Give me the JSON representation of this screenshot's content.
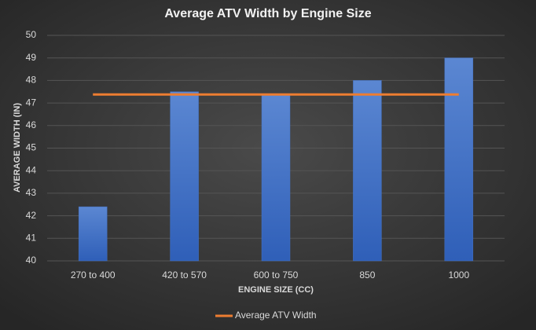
{
  "chart_data": {
    "type": "bar",
    "title": "Average ATV Width by Engine Size",
    "x_label": "ENGINE SIZE (CC)",
    "y_label": "AVERAGE WIDTH (IN)",
    "categories": [
      "270 to 400",
      "420 to 570",
      "600 to 750",
      "850",
      "1000"
    ],
    "series": [
      {
        "type": "bar",
        "color": "#4472c4",
        "values": [
          42.4,
          47.5,
          47.35,
          48.0,
          49.0
        ]
      },
      {
        "type": "line",
        "name": "Average ATV Width",
        "color": "#ed7d31",
        "values": [
          47.38,
          47.38,
          47.38,
          47.38,
          47.38
        ]
      }
    ],
    "ylim": [
      40,
      50
    ],
    "yticks": [
      40,
      41,
      42,
      43,
      44,
      45,
      46,
      47,
      48,
      49,
      50
    ],
    "grid": true,
    "legend": "bottom"
  }
}
